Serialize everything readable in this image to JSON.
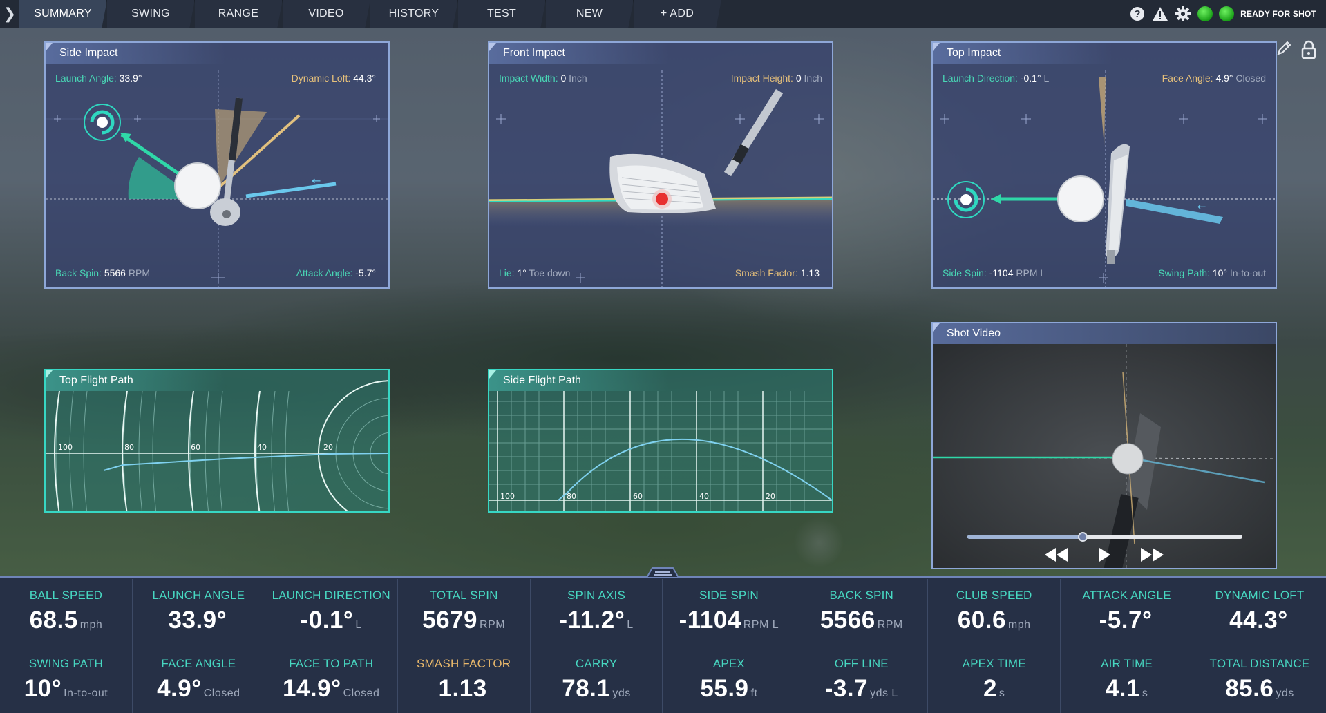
{
  "nav": {
    "tabs": [
      {
        "label": "SUMMARY",
        "active": true
      },
      {
        "label": "SWING"
      },
      {
        "label": "RANGE"
      },
      {
        "label": "VIDEO"
      },
      {
        "label": "HISTORY"
      },
      {
        "label": "TEST"
      },
      {
        "label": "NEW"
      },
      {
        "label": "+ ADD"
      }
    ],
    "status": "READY FOR SHOT",
    "icons": [
      "help-icon",
      "warning-icon",
      "gear-icon",
      "device-status-icon",
      "ready-status-icon"
    ]
  },
  "side_impact": {
    "title": "Side Impact",
    "launch_angle_label": "Launch Angle:",
    "launch_angle_value": "33.9°",
    "dynamic_loft_label": "Dynamic Loft:",
    "dynamic_loft_value": "44.3°",
    "back_spin_label": "Back Spin:",
    "back_spin_value": "5566",
    "back_spin_unit": "RPM",
    "attack_angle_label": "Attack Angle:",
    "attack_angle_value": "-5.7°"
  },
  "front_impact": {
    "title": "Front Impact",
    "impact_width_label": "Impact Width:",
    "impact_width_value": "0",
    "impact_width_unit": "Inch",
    "impact_height_label": "Impact Height:",
    "impact_height_value": "0",
    "impact_height_unit": "Inch",
    "lie_label": "Lie:",
    "lie_value": "1°",
    "lie_unit": "Toe down",
    "smash_label": "Smash Factor:",
    "smash_value": "1.13"
  },
  "top_impact": {
    "title": "Top Impact",
    "launch_dir_label": "Launch Direction:",
    "launch_dir_value": "-0.1°",
    "launch_dir_unit": "L",
    "face_angle_label": "Face Angle:",
    "face_angle_value": "4.9°",
    "face_angle_unit": "Closed",
    "side_spin_label": "Side Spin:",
    "side_spin_value": "-1104",
    "side_spin_unit": "RPM L",
    "swing_path_label": "Swing Path:",
    "swing_path_value": "10°",
    "swing_path_unit": "In-to-out"
  },
  "top_flight": {
    "title": "Top Flight Path",
    "tick_labels": [
      "100",
      "80",
      "60",
      "40",
      "20"
    ]
  },
  "side_flight": {
    "title": "Side Flight Path",
    "tick_labels": [
      "100",
      "80",
      "60",
      "40",
      "20"
    ]
  },
  "shot_video": {
    "title": "Shot Video",
    "progress": 0.42,
    "controls": [
      "rewind-icon",
      "play-icon",
      "fast-forward-icon"
    ]
  },
  "stats": {
    "row1": [
      {
        "label": "BALL SPEED",
        "value": "68.5",
        "unit": "mph"
      },
      {
        "label": "LAUNCH ANGLE",
        "value": "33.9°",
        "unit": ""
      },
      {
        "label": "LAUNCH DIRECTION",
        "value": "-0.1°",
        "unit": "L"
      },
      {
        "label": "TOTAL SPIN",
        "value": "5679",
        "unit": "RPM"
      },
      {
        "label": "SPIN AXIS",
        "value": "-11.2°",
        "unit": "L"
      },
      {
        "label": "SIDE SPIN",
        "value": "-1104",
        "unit": "RPM L"
      },
      {
        "label": "BACK SPIN",
        "value": "5566",
        "unit": "RPM"
      },
      {
        "label": "CLUB SPEED",
        "value": "60.6",
        "unit": "mph"
      },
      {
        "label": "ATTACK ANGLE",
        "value": "-5.7°",
        "unit": ""
      },
      {
        "label": "DYNAMIC LOFT",
        "value": "44.3°",
        "unit": ""
      }
    ],
    "row2": [
      {
        "label": "SWING PATH",
        "value": "10°",
        "unit": "In-to-out"
      },
      {
        "label": "FACE ANGLE",
        "value": "4.9°",
        "unit": "Closed"
      },
      {
        "label": "FACE TO PATH",
        "value": "14.9°",
        "unit": "Closed"
      },
      {
        "label": "SMASH FACTOR",
        "value": "1.13",
        "unit": "",
        "accent": "#e9b86b"
      },
      {
        "label": "CARRY",
        "value": "78.1",
        "unit": "yds"
      },
      {
        "label": "APEX",
        "value": "55.9",
        "unit": "ft"
      },
      {
        "label": "OFF LINE",
        "value": "-3.7",
        "unit": "yds L"
      },
      {
        "label": "APEX TIME",
        "value": "2",
        "unit": "s"
      },
      {
        "label": "AIR TIME",
        "value": "4.1",
        "unit": "s"
      },
      {
        "label": "TOTAL DISTANCE",
        "value": "85.6",
        "unit": "yds"
      }
    ]
  },
  "colors": {
    "accent_teal": "#47d7c1",
    "accent_gold": "#e9b86b",
    "panel_border": "#8ea7d8",
    "flight_border": "#37d7c4",
    "ready_green": "#1aa018"
  }
}
